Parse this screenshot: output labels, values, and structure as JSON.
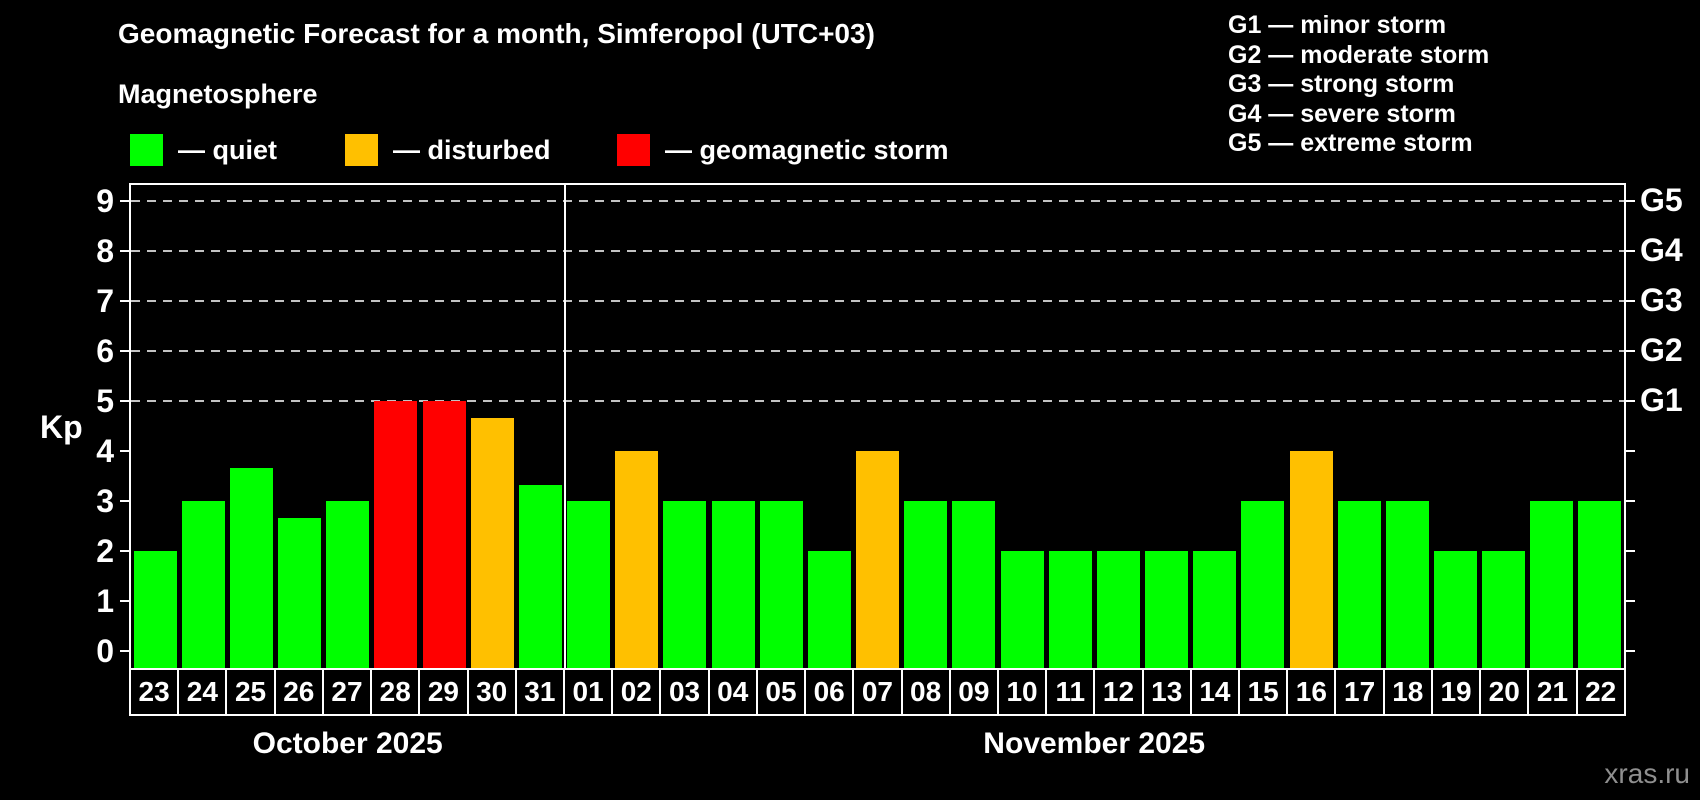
{
  "header": {
    "title": "Geomagnetic Forecast for a month, Simferopol (UTC+03)",
    "subtitle": "Magnetosphere",
    "legend": [
      {
        "key": "quiet",
        "label": "— quiet",
        "color": "#00ff00"
      },
      {
        "key": "disturbed",
        "label": "— disturbed",
        "color": "#ffc000"
      },
      {
        "key": "storm",
        "label": "— geomagnetic storm",
        "color": "#ff0000"
      }
    ],
    "g_scale": [
      "G1 — minor storm",
      "G2 — moderate storm",
      "G3 — strong storm",
      "G4 — severe storm",
      "G5 — extreme storm"
    ]
  },
  "chart_data": {
    "type": "bar",
    "title": "Geomagnetic Forecast for a month, Simferopol (UTC+03)",
    "ylabel": "Kp",
    "ylim": [
      0,
      9
    ],
    "yticks": [
      0,
      1,
      2,
      3,
      4,
      5,
      6,
      7,
      8,
      9
    ],
    "grid": "dashed horizontal lines at Kp 5,6,7,8,9 only",
    "legend_position": "top-left",
    "right_axis_labels": [
      {
        "label": "G5",
        "kp": 9
      },
      {
        "label": "G4",
        "kp": 8
      },
      {
        "label": "G3",
        "kp": 7
      },
      {
        "label": "G2",
        "kp": 6
      },
      {
        "label": "G1",
        "kp": 5
      }
    ],
    "colors": {
      "quiet": "#00ff00",
      "disturbed": "#ffc000",
      "storm": "#ff0000"
    },
    "months": [
      {
        "label": "October 2025",
        "days": [
          {
            "day": "23",
            "kp": 2.0,
            "status": "quiet"
          },
          {
            "day": "24",
            "kp": 3.0,
            "status": "quiet"
          },
          {
            "day": "25",
            "kp": 3.67,
            "status": "quiet"
          },
          {
            "day": "26",
            "kp": 2.67,
            "status": "quiet"
          },
          {
            "day": "27",
            "kp": 3.0,
            "status": "quiet"
          },
          {
            "day": "28",
            "kp": 5.0,
            "status": "storm"
          },
          {
            "day": "29",
            "kp": 5.0,
            "status": "storm"
          },
          {
            "day": "30",
            "kp": 4.67,
            "status": "disturbed"
          },
          {
            "day": "31",
            "kp": 3.33,
            "status": "quiet"
          }
        ]
      },
      {
        "label": "November 2025",
        "days": [
          {
            "day": "01",
            "kp": 3.0,
            "status": "quiet"
          },
          {
            "day": "02",
            "kp": 4.0,
            "status": "disturbed"
          },
          {
            "day": "03",
            "kp": 3.0,
            "status": "quiet"
          },
          {
            "day": "04",
            "kp": 3.0,
            "status": "quiet"
          },
          {
            "day": "05",
            "kp": 3.0,
            "status": "quiet"
          },
          {
            "day": "06",
            "kp": 2.0,
            "status": "quiet"
          },
          {
            "day": "07",
            "kp": 4.0,
            "status": "disturbed"
          },
          {
            "day": "08",
            "kp": 3.0,
            "status": "quiet"
          },
          {
            "day": "09",
            "kp": 3.0,
            "status": "quiet"
          },
          {
            "day": "10",
            "kp": 2.0,
            "status": "quiet"
          },
          {
            "day": "11",
            "kp": 2.0,
            "status": "quiet"
          },
          {
            "day": "12",
            "kp": 2.0,
            "status": "quiet"
          },
          {
            "day": "13",
            "kp": 2.0,
            "status": "quiet"
          },
          {
            "day": "14",
            "kp": 2.0,
            "status": "quiet"
          },
          {
            "day": "15",
            "kp": 3.0,
            "status": "quiet"
          },
          {
            "day": "16",
            "kp": 4.0,
            "status": "disturbed"
          },
          {
            "day": "17",
            "kp": 3.0,
            "status": "quiet"
          },
          {
            "day": "18",
            "kp": 3.0,
            "status": "quiet"
          },
          {
            "day": "19",
            "kp": 2.0,
            "status": "quiet"
          },
          {
            "day": "20",
            "kp": 2.0,
            "status": "quiet"
          },
          {
            "day": "21",
            "kp": 3.0,
            "status": "quiet"
          },
          {
            "day": "22",
            "kp": 3.0,
            "status": "quiet"
          }
        ]
      }
    ]
  },
  "watermark": "xras.ru"
}
